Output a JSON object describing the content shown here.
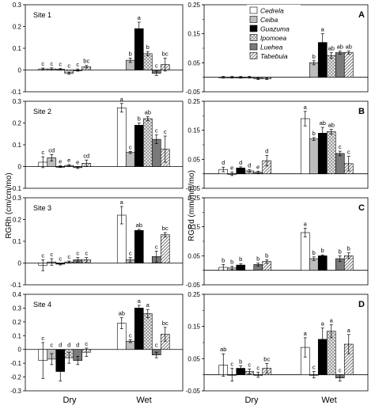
{
  "figure": {
    "ylabel_left": "RGRh (cm/cm/mo)",
    "ylabel_right": "RGRd (mm/mm/mo)",
    "xlabels": [
      "Dry",
      "Wet"
    ]
  },
  "legend": [
    {
      "name": "Cedrela",
      "pattern": "white"
    },
    {
      "name": "Ceiba",
      "pattern": "lightgray"
    },
    {
      "name": "Guazuma",
      "pattern": "black"
    },
    {
      "name": "Ipomoea",
      "pattern": "checker"
    },
    {
      "name": "Luehea",
      "pattern": "darkgray"
    },
    {
      "name": "Tabebuia",
      "pattern": "hatch"
    }
  ],
  "chart_data": [
    {
      "type": "bar",
      "panel": "site1-rgrh",
      "title": "Site 1",
      "ylim": [
        -0.1,
        0.3
      ],
      "ticks": [
        "0.3",
        "0.2",
        "0.1",
        "0",
        "-0.1"
      ],
      "categories": [
        "Dry",
        "Wet"
      ],
      "series": [
        {
          "name": "Cedrela",
          "values": [
            0.005,
            null
          ],
          "err": [
            0.004,
            null
          ],
          "letters": [
            "c",
            ""
          ]
        },
        {
          "name": "Ceiba",
          "values": [
            0.005,
            0.045
          ],
          "err": [
            0.005,
            0.01
          ],
          "letters": [
            "c",
            "b"
          ]
        },
        {
          "name": "Guazuma",
          "values": [
            0.003,
            0.19
          ],
          "err": [
            0.004,
            0.03
          ],
          "letters": [
            "c",
            "a"
          ]
        },
        {
          "name": "Ipomoea",
          "values": [
            -0.015,
            0.075
          ],
          "err": [
            0.005,
            0.01
          ],
          "letters": [
            "c",
            "b"
          ]
        },
        {
          "name": "Luehea",
          "values": [
            0.0,
            -0.015
          ],
          "err": [
            0.005,
            0.01
          ],
          "letters": [
            "c",
            "c"
          ]
        },
        {
          "name": "Tabebuia",
          "values": [
            0.015,
            0.025
          ],
          "err": [
            0.006,
            0.03
          ],
          "letters": [
            "bc",
            "bc"
          ]
        }
      ]
    },
    {
      "type": "bar",
      "panel": "site1-rgrd",
      "label": "A",
      "ylim": [
        -0.05,
        0.25
      ],
      "ticks": [
        "0.25",
        "0.15",
        "0.05",
        "-0.05"
      ],
      "categories": [
        "Dry",
        "Wet"
      ],
      "series": [
        {
          "name": "Cedrela",
          "values": [
            0.0,
            null
          ],
          "err": [
            0.003,
            null
          ],
          "letters": [
            "",
            ""
          ]
        },
        {
          "name": "Ceiba",
          "values": [
            0.0,
            0.05
          ],
          "err": [
            0.003,
            0.007
          ],
          "letters": [
            "",
            "b"
          ]
        },
        {
          "name": "Guazuma",
          "values": [
            0.0,
            0.12
          ],
          "err": [
            0.003,
            0.03
          ],
          "letters": [
            "",
            "a"
          ]
        },
        {
          "name": "Ipomoea",
          "values": [
            0.0,
            0.075
          ],
          "err": [
            0.003,
            0.01
          ],
          "letters": [
            "",
            "ab"
          ]
        },
        {
          "name": "Luehea",
          "values": [
            -0.005,
            0.085
          ],
          "err": [
            0.003,
            0.005
          ],
          "letters": [
            "",
            "ab"
          ]
        },
        {
          "name": "Tabebuia",
          "values": [
            -0.005,
            0.085
          ],
          "err": [
            0.003,
            0.005
          ],
          "letters": [
            "",
            "ab"
          ]
        }
      ]
    },
    {
      "type": "bar",
      "panel": "site2-rgrh",
      "title": "Site 2",
      "ylim": [
        -0.1,
        0.3
      ],
      "ticks": [
        "0.3",
        "0.2",
        "0.1",
        "0",
        "-0.1"
      ],
      "categories": [
        "Dry",
        "Wet"
      ],
      "series": [
        {
          "name": "Cedrela",
          "values": [
            0.02,
            0.27
          ],
          "err": [
            0.025,
            0.02
          ],
          "letters": [
            "c",
            "a"
          ]
        },
        {
          "name": "Ceiba",
          "values": [
            0.04,
            0.065
          ],
          "err": [
            0.015,
            0.005
          ],
          "letters": [
            "cd",
            "c"
          ]
        },
        {
          "name": "Guazuma",
          "values": [
            0.0,
            0.19
          ],
          "err": [
            0.004,
            0.01
          ],
          "letters": [
            "e",
            "b"
          ]
        },
        {
          "name": "Ipomoea",
          "values": [
            0.005,
            0.22
          ],
          "err": [
            0.004,
            0.01
          ],
          "letters": [
            "e",
            "ab"
          ]
        },
        {
          "name": "Luehea",
          "values": [
            -0.005,
            0.125
          ],
          "err": [
            0.004,
            0.02
          ],
          "letters": [
            "e",
            "c"
          ]
        },
        {
          "name": "Tabebuia",
          "values": [
            0.015,
            0.08
          ],
          "err": [
            0.015,
            0.06
          ],
          "letters": [
            "cd",
            "c"
          ]
        }
      ]
    },
    {
      "type": "bar",
      "panel": "site2-rgrd",
      "label": "B",
      "ylim": [
        -0.05,
        0.25
      ],
      "ticks": [
        "0.25",
        "0.15",
        "0.05",
        "-0.05"
      ],
      "categories": [
        "Dry",
        "Wet"
      ],
      "series": [
        {
          "name": "Cedrela",
          "values": [
            0.015,
            0.19
          ],
          "err": [
            0.008,
            0.025
          ],
          "letters": [
            "d",
            "a"
          ]
        },
        {
          "name": "Ceiba",
          "values": [
            0.0,
            0.12
          ],
          "err": [
            0.006,
            0.005
          ],
          "letters": [
            "e",
            "b"
          ]
        },
        {
          "name": "Guazuma",
          "values": [
            0.02,
            0.14
          ],
          "err": [
            0.004,
            0.02
          ],
          "letters": [
            "d",
            "ab"
          ]
        },
        {
          "name": "Ipomoea",
          "values": [
            0.01,
            0.145
          ],
          "err": [
            0.004,
            0.008
          ],
          "letters": [
            "d",
            "ab"
          ]
        },
        {
          "name": "Luehea",
          "values": [
            0.005,
            0.07
          ],
          "err": [
            0.004,
            0.008
          ],
          "letters": [
            "e",
            "c"
          ]
        },
        {
          "name": "Tabebuia",
          "values": [
            0.045,
            0.035
          ],
          "err": [
            0.018,
            0.025
          ],
          "letters": [
            "d",
            "c"
          ]
        }
      ]
    },
    {
      "type": "bar",
      "panel": "site3-rgrh",
      "title": "Site 3",
      "ylim": [
        -0.1,
        0.3
      ],
      "ticks": [
        "0.3",
        "0.2",
        "0.1",
        "0",
        "-0.1"
      ],
      "categories": [
        "Dry",
        "Wet"
      ],
      "series": [
        {
          "name": "Cedrela",
          "values": [
            -0.01,
            0.22
          ],
          "err": [
            0.025,
            0.04
          ],
          "letters": [
            "c",
            "a"
          ]
        },
        {
          "name": "Ceiba",
          "values": [
            0.005,
            0.015
          ],
          "err": [
            0.015,
            0.01
          ],
          "letters": [
            "c",
            "c"
          ]
        },
        {
          "name": "Guazuma",
          "values": [
            -0.005,
            0.15
          ],
          "err": [
            0.004,
            0.005
          ],
          "letters": [
            "c",
            "ab"
          ]
        },
        {
          "name": "Ipomoea",
          "values": [
            0.005,
            null
          ],
          "err": [
            0.004,
            null
          ],
          "letters": [
            "c",
            ""
          ]
        },
        {
          "name": "Luehea",
          "values": [
            0.015,
            0.03
          ],
          "err": [
            0.01,
            0.025
          ],
          "letters": [
            "c",
            "c"
          ]
        },
        {
          "name": "Tabebuia",
          "values": [
            0.015,
            0.13
          ],
          "err": [
            0.01,
            0.01
          ],
          "letters": [
            "c",
            "bc"
          ]
        }
      ]
    },
    {
      "type": "bar",
      "panel": "site3-rgrd",
      "label": "C",
      "ylim": [
        -0.05,
        0.25
      ],
      "ticks": [
        "0.25",
        "0.15",
        "0.05",
        "-0.05"
      ],
      "categories": [
        "Dry",
        "Wet"
      ],
      "series": [
        {
          "name": "Cedrela",
          "values": [
            0.01,
            0.13
          ],
          "err": [
            0.01,
            0.015
          ],
          "letters": [
            "b",
            "a"
          ]
        },
        {
          "name": "Ceiba",
          "values": [
            0.008,
            0.04
          ],
          "err": [
            0.006,
            0.006
          ],
          "letters": [
            "b",
            "b"
          ]
        },
        {
          "name": "Guazuma",
          "values": [
            0.018,
            0.05
          ],
          "err": [
            0.005,
            0.003
          ],
          "letters": [
            "b",
            "b"
          ]
        },
        {
          "name": "Ipomoea",
          "values": [
            null,
            null
          ],
          "err": [
            null,
            null
          ],
          "letters": [
            "",
            ""
          ]
        },
        {
          "name": "Luehea",
          "values": [
            0.02,
            0.04
          ],
          "err": [
            0.005,
            0.01
          ],
          "letters": [
            "b",
            "b"
          ]
        },
        {
          "name": "Tabebuia",
          "values": [
            0.03,
            0.05
          ],
          "err": [
            0.006,
            0.01
          ],
          "letters": [
            "b",
            "b"
          ]
        }
      ]
    },
    {
      "type": "bar",
      "panel": "site4-rgrh",
      "title": "Site 4",
      "ylim": [
        -0.3,
        0.4
      ],
      "ticks": [
        "0.4",
        "0.3",
        "0.2",
        "0.1",
        "0",
        "-0.1",
        "-0.2",
        "-0.3"
      ],
      "categories": [
        "Dry",
        "Wet"
      ],
      "series": [
        {
          "name": "Cedrela",
          "values": [
            -0.08,
            0.19
          ],
          "err": [
            0.13,
            0.04
          ],
          "letters": [
            "c",
            "ab"
          ]
        },
        {
          "name": "Ceiba",
          "values": [
            -0.07,
            0.06
          ],
          "err": [
            0.04,
            0.01
          ],
          "letters": [
            "c",
            "c"
          ]
        },
        {
          "name": "Guazuma",
          "values": [
            -0.16,
            0.3
          ],
          "err": [
            0.07,
            0.02
          ],
          "letters": [
            "d",
            "a"
          ]
        },
        {
          "name": "Ipomoea",
          "values": [
            -0.06,
            0.26
          ],
          "err": [
            0.04,
            0.03
          ],
          "letters": [
            "d",
            "a"
          ]
        },
        {
          "name": "Luehea",
          "values": [
            -0.08,
            -0.04
          ],
          "err": [
            0.03,
            0.02
          ],
          "letters": [
            "d",
            "c"
          ]
        },
        {
          "name": "Tabebuia",
          "values": [
            -0.02,
            0.11
          ],
          "err": [
            0.03,
            0.05
          ],
          "letters": [
            "c",
            "bc"
          ]
        }
      ]
    },
    {
      "type": "bar",
      "panel": "site4-rgrd",
      "label": "D",
      "ylim": [
        -0.05,
        0.25
      ],
      "ticks": [
        "0.25",
        "0.15",
        "0.05",
        "-0.05"
      ],
      "categories": [
        "Dry",
        "Wet"
      ],
      "series": [
        {
          "name": "Cedrela",
          "values": [
            0.03,
            0.085
          ],
          "err": [
            0.035,
            0.03
          ],
          "letters": [
            "ab",
            "a"
          ]
        },
        {
          "name": "Ceiba",
          "values": [
            0.0,
            0.0
          ],
          "err": [
            0.02,
            0.01
          ],
          "letters": [
            "c",
            "c"
          ]
        },
        {
          "name": "Guazuma",
          "values": [
            0.02,
            0.11
          ],
          "err": [
            0.008,
            0.035
          ],
          "letters": [
            "b",
            "a"
          ]
        },
        {
          "name": "Ipomoea",
          "values": [
            0.01,
            0.135
          ],
          "err": [
            0.008,
            0.02
          ],
          "letters": [
            "c",
            "a"
          ]
        },
        {
          "name": "Luehea",
          "values": [
            0.0,
            -0.01
          ],
          "err": [
            0.008,
            0.01
          ],
          "letters": [
            "c",
            "c"
          ]
        },
        {
          "name": "Tabebuia",
          "values": [
            0.02,
            0.095
          ],
          "err": [
            0.015,
            0.03
          ],
          "letters": [
            "bc",
            "a"
          ]
        }
      ]
    }
  ]
}
